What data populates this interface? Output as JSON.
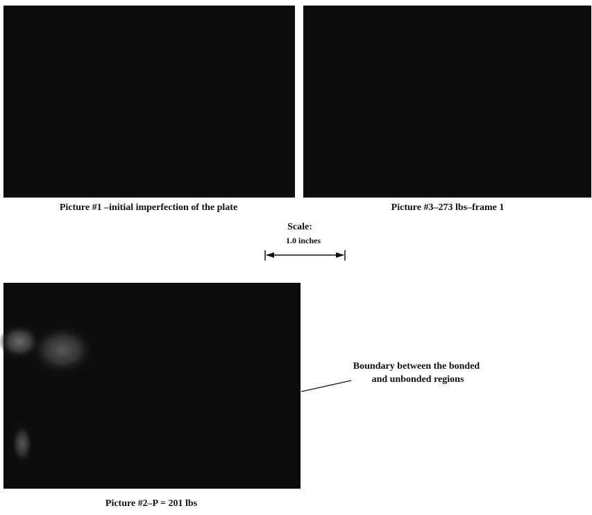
{
  "figures": [
    {
      "caption": "Picture #1 –initial imperfection of the plate"
    },
    {
      "caption": "Picture #3–273 lbs–frame 1"
    },
    {
      "caption": "Picture #2–P = 201 lbs"
    }
  ],
  "scale": {
    "title": "Scale:",
    "label": "1.0 inches"
  },
  "annotation": {
    "lines": [
      "Boundary between the bonded",
      "and  unbonded regions"
    ]
  }
}
